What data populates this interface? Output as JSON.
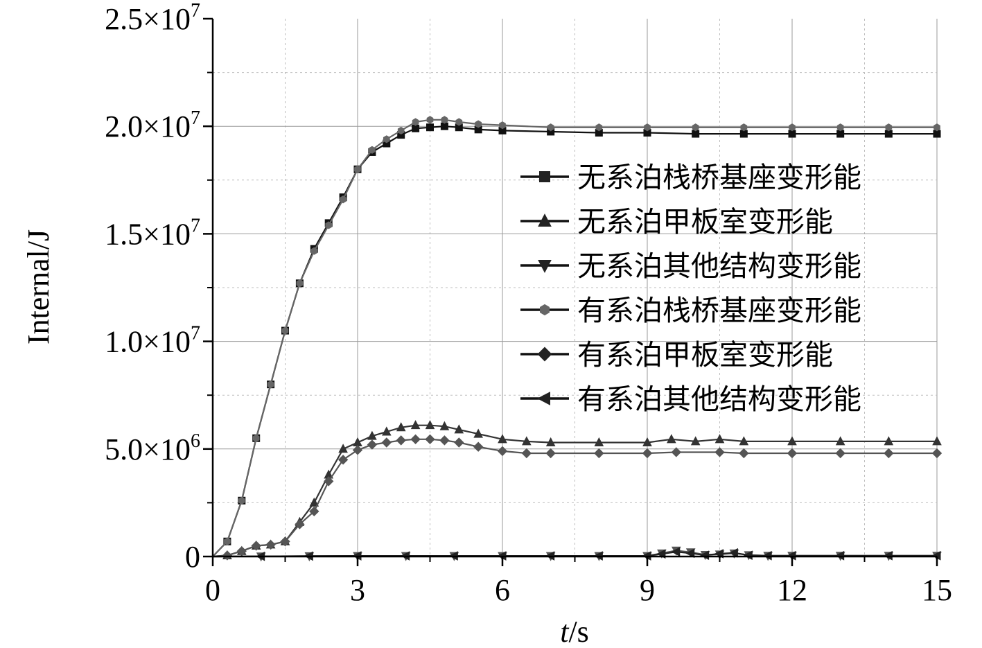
{
  "chart_data": {
    "type": "line",
    "xlabel_italic": "t",
    "xlabel_unit": "/s",
    "ylabel": "Internal/J",
    "xlim": [
      0,
      15
    ],
    "ylim": [
      0,
      25000000
    ],
    "x_ticks": [
      0,
      3,
      6,
      9,
      12,
      15
    ],
    "x_tick_labels": [
      "0",
      "3",
      "6",
      "9",
      "12",
      "15"
    ],
    "y_ticks": [
      0,
      5000000,
      10000000,
      15000000,
      20000000,
      25000000
    ],
    "y_tick_labels": [
      {
        "mantissa": "0",
        "exp": ""
      },
      {
        "mantissa": "5.0×10",
        "exp": "6"
      },
      {
        "mantissa": "1.0×10",
        "exp": "7"
      },
      {
        "mantissa": "1.5×10",
        "exp": "7"
      },
      {
        "mantissa": "2.0×10",
        "exp": "7"
      },
      {
        "mantissa": "2.5×10",
        "exp": "7"
      }
    ],
    "grid": true,
    "legend_position": "right",
    "series": [
      {
        "name": "无系泊栈桥基座变形能",
        "marker": "square",
        "color": "#111111",
        "points": [
          [
            0,
            0
          ],
          [
            0.3,
            700000
          ],
          [
            0.6,
            2600000
          ],
          [
            0.9,
            5500000
          ],
          [
            1.2,
            8000000
          ],
          [
            1.5,
            10500000
          ],
          [
            1.8,
            12700000
          ],
          [
            2.1,
            14300000
          ],
          [
            2.4,
            15500000
          ],
          [
            2.7,
            16700000
          ],
          [
            3.0,
            18000000
          ],
          [
            3.3,
            18800000
          ],
          [
            3.6,
            19200000
          ],
          [
            3.9,
            19600000
          ],
          [
            4.2,
            19900000
          ],
          [
            4.5,
            19950000
          ],
          [
            4.8,
            20000000
          ],
          [
            5.1,
            19950000
          ],
          [
            5.5,
            19850000
          ],
          [
            6.0,
            19800000
          ],
          [
            7,
            19750000
          ],
          [
            8,
            19700000
          ],
          [
            9,
            19700000
          ],
          [
            10,
            19650000
          ],
          [
            11,
            19650000
          ],
          [
            12,
            19650000
          ],
          [
            13,
            19650000
          ],
          [
            14,
            19650000
          ],
          [
            15,
            19650000
          ]
        ]
      },
      {
        "name": "无系泊甲板室变形能",
        "marker": "triangle-up",
        "color": "#333333",
        "points": [
          [
            0,
            0
          ],
          [
            0.3,
            50000
          ],
          [
            0.6,
            250000
          ],
          [
            0.9,
            500000
          ],
          [
            1.2,
            550000
          ],
          [
            1.5,
            700000
          ],
          [
            1.8,
            1600000
          ],
          [
            2.1,
            2500000
          ],
          [
            2.4,
            3800000
          ],
          [
            2.7,
            5000000
          ],
          [
            3.0,
            5300000
          ],
          [
            3.3,
            5600000
          ],
          [
            3.6,
            5800000
          ],
          [
            3.9,
            6000000
          ],
          [
            4.2,
            6100000
          ],
          [
            4.5,
            6100000
          ],
          [
            4.8,
            6050000
          ],
          [
            5.1,
            5900000
          ],
          [
            5.5,
            5700000
          ],
          [
            6.0,
            5450000
          ],
          [
            6.5,
            5350000
          ],
          [
            7,
            5300000
          ],
          [
            8,
            5300000
          ],
          [
            9,
            5300000
          ],
          [
            9.5,
            5450000
          ],
          [
            10,
            5350000
          ],
          [
            10.5,
            5450000
          ],
          [
            11,
            5350000
          ],
          [
            12,
            5350000
          ],
          [
            13,
            5350000
          ],
          [
            14,
            5350000
          ],
          [
            15,
            5350000
          ]
        ]
      },
      {
        "name": "无系泊其他结构变形能",
        "marker": "triangle-down",
        "color": "#555555",
        "points": [
          [
            0,
            0
          ],
          [
            1,
            10000
          ],
          [
            2,
            20000
          ],
          [
            3,
            30000
          ],
          [
            4,
            30000
          ],
          [
            5,
            30000
          ],
          [
            6,
            30000
          ],
          [
            7,
            30000
          ],
          [
            8,
            30000
          ],
          [
            9,
            30000
          ],
          [
            9.3,
            150000
          ],
          [
            9.6,
            280000
          ],
          [
            9.9,
            200000
          ],
          [
            10.2,
            80000
          ],
          [
            10.5,
            100000
          ],
          [
            10.8,
            150000
          ],
          [
            11.1,
            70000
          ],
          [
            11.5,
            40000
          ],
          [
            12,
            40000
          ],
          [
            13,
            40000
          ],
          [
            14,
            40000
          ],
          [
            15,
            40000
          ]
        ]
      },
      {
        "name": "有系泊栈桥基座变形能",
        "marker": "hexagon",
        "color": "#666666",
        "points": [
          [
            0,
            0
          ],
          [
            0.3,
            700000
          ],
          [
            0.6,
            2600000
          ],
          [
            0.9,
            5500000
          ],
          [
            1.2,
            8000000
          ],
          [
            1.5,
            10500000
          ],
          [
            1.8,
            12700000
          ],
          [
            2.1,
            14200000
          ],
          [
            2.4,
            15400000
          ],
          [
            2.7,
            16600000
          ],
          [
            3.0,
            18000000
          ],
          [
            3.3,
            18900000
          ],
          [
            3.6,
            19400000
          ],
          [
            3.9,
            19800000
          ],
          [
            4.2,
            20200000
          ],
          [
            4.5,
            20300000
          ],
          [
            4.8,
            20300000
          ],
          [
            5.1,
            20200000
          ],
          [
            5.5,
            20100000
          ],
          [
            6.0,
            20050000
          ],
          [
            7,
            19950000
          ],
          [
            8,
            19950000
          ],
          [
            9,
            19950000
          ],
          [
            10,
            19950000
          ],
          [
            11,
            19950000
          ],
          [
            12,
            19950000
          ],
          [
            13,
            19950000
          ],
          [
            14,
            19950000
          ],
          [
            15,
            19950000
          ]
        ]
      },
      {
        "name": "有系泊甲板室变形能",
        "marker": "diamond",
        "color": "#555555",
        "points": [
          [
            0,
            0
          ],
          [
            0.3,
            50000
          ],
          [
            0.6,
            250000
          ],
          [
            0.9,
            500000
          ],
          [
            1.2,
            550000
          ],
          [
            1.5,
            700000
          ],
          [
            1.8,
            1500000
          ],
          [
            2.1,
            2100000
          ],
          [
            2.4,
            3500000
          ],
          [
            2.7,
            4500000
          ],
          [
            3.0,
            4950000
          ],
          [
            3.3,
            5200000
          ],
          [
            3.6,
            5300000
          ],
          [
            3.9,
            5400000
          ],
          [
            4.2,
            5450000
          ],
          [
            4.5,
            5450000
          ],
          [
            4.8,
            5400000
          ],
          [
            5.1,
            5300000
          ],
          [
            5.5,
            5100000
          ],
          [
            6.0,
            4900000
          ],
          [
            6.5,
            4800000
          ],
          [
            7,
            4800000
          ],
          [
            8,
            4800000
          ],
          [
            9,
            4800000
          ],
          [
            9.6,
            4850000
          ],
          [
            10.5,
            4850000
          ],
          [
            11,
            4800000
          ],
          [
            12,
            4800000
          ],
          [
            13,
            4800000
          ],
          [
            14,
            4800000
          ],
          [
            15,
            4800000
          ]
        ]
      },
      {
        "name": "有系泊其他结构变形能",
        "marker": "triangle-left",
        "color": "#222222",
        "points": [
          [
            0,
            0
          ],
          [
            1,
            10000
          ],
          [
            2,
            20000
          ],
          [
            3,
            30000
          ],
          [
            4,
            30000
          ],
          [
            5,
            30000
          ],
          [
            6,
            30000
          ],
          [
            7,
            30000
          ],
          [
            8,
            30000
          ],
          [
            9,
            30000
          ],
          [
            9.3,
            120000
          ],
          [
            9.6,
            220000
          ],
          [
            9.9,
            150000
          ],
          [
            10.2,
            60000
          ],
          [
            10.5,
            130000
          ],
          [
            10.8,
            170000
          ],
          [
            11.1,
            60000
          ],
          [
            11.5,
            40000
          ],
          [
            12,
            40000
          ],
          [
            13,
            40000
          ],
          [
            14,
            40000
          ],
          [
            15,
            40000
          ]
        ]
      }
    ]
  }
}
